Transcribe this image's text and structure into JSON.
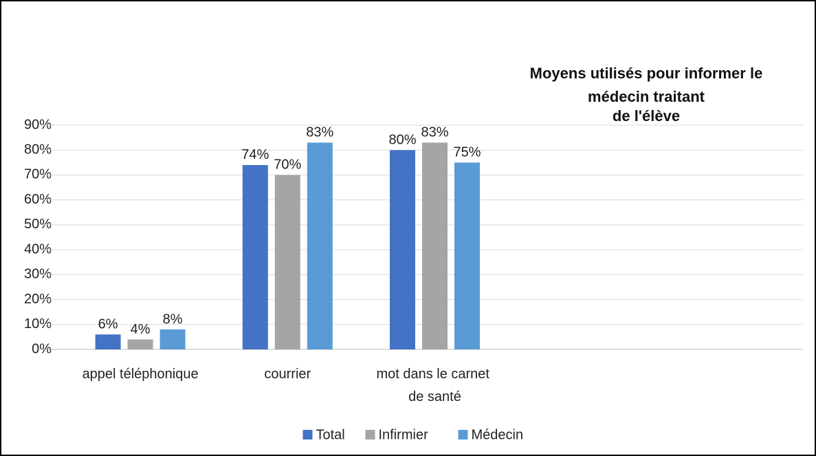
{
  "chart_data": {
    "type": "bar",
    "title": [
      "Moyens utilisés pour informer le",
      "médecin traitant",
      "de l'élève"
    ],
    "categories": [
      "appel téléphonique",
      "courrier",
      "mot dans le carnet de santé",
      null,
      null
    ],
    "series": [
      {
        "name": "Total",
        "color": "#4472c4",
        "values": [
          6,
          74,
          80,
          null,
          null
        ],
        "value_labels": [
          "6%",
          "74%",
          "80%",
          null,
          null
        ]
      },
      {
        "name": "Infirmier",
        "color": "#a5a5a5",
        "values": [
          4,
          70,
          83,
          null,
          null
        ],
        "value_labels": [
          "4%",
          "70%",
          "83%",
          null,
          null
        ]
      },
      {
        "name": "Médecin",
        "color": "#5b9bd5",
        "values": [
          8,
          83,
          75,
          null,
          null
        ],
        "value_labels": [
          "8%",
          "83%",
          "75%",
          null,
          null
        ]
      }
    ],
    "ylim": [
      0,
      90
    ],
    "yticks": [
      {
        "value": 0,
        "label": "0%"
      },
      {
        "value": 10,
        "label": "10%"
      },
      {
        "value": 20,
        "label": "20%"
      },
      {
        "value": 30,
        "label": "30%"
      },
      {
        "value": 40,
        "label": "40%"
      },
      {
        "value": 50,
        "label": "50%"
      },
      {
        "value": 60,
        "label": "60%"
      },
      {
        "value": 70,
        "label": "70%"
      },
      {
        "value": 80,
        "label": "80%"
      },
      {
        "value": 90,
        "label": "90%"
      }
    ],
    "grid": true,
    "legend": "bottom"
  }
}
